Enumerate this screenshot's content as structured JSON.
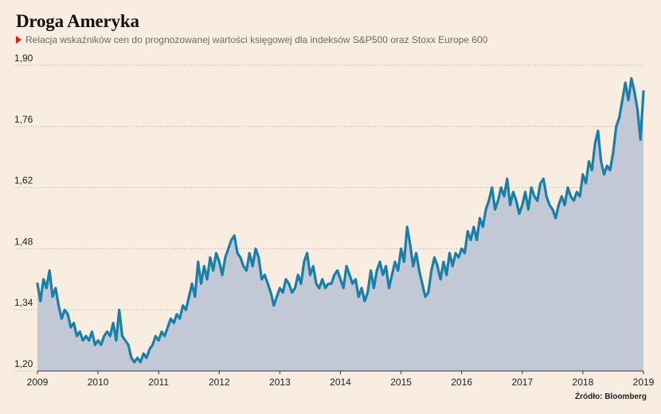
{
  "title": "Droga Ameryka",
  "subtitle": "Relacja wskaźników cen do prognozowanej wartości księgowej dla indeksów S&P500 oraz Stoxx Europe 600",
  "source": "Źródło: Bloomberg",
  "colors": {
    "background": "#f8ede0",
    "line": "#1a7fa8",
    "area": "#c3c8d6",
    "marker": "#e02020",
    "grid": "#9a9a9a"
  },
  "chart_data": {
    "type": "area",
    "ylim": [
      1.2,
      1.9
    ],
    "yticks": [
      "1,90",
      "1,76",
      "1,62",
      "1,48",
      "1,34",
      "1,20"
    ],
    "ytick_values": [
      1.9,
      1.76,
      1.62,
      1.48,
      1.34,
      1.2
    ],
    "xlim": [
      2009.0,
      2019.0
    ],
    "xticks": [
      "2009",
      "2010",
      "2011",
      "2012",
      "2013",
      "2014",
      "2015",
      "2016",
      "2017",
      "2018",
      "2019"
    ],
    "xtick_values": [
      2009,
      2010,
      2011,
      2012,
      2013,
      2014,
      2015,
      2016,
      2017,
      2018,
      2019
    ],
    "grid": "horizontal dotted",
    "x": [
      2009.0,
      2009.05,
      2009.1,
      2009.15,
      2009.2,
      2009.25,
      2009.3,
      2009.35,
      2009.4,
      2009.45,
      2009.5,
      2009.55,
      2009.6,
      2009.65,
      2009.7,
      2009.75,
      2009.8,
      2009.85,
      2009.9,
      2009.95,
      2010.0,
      2010.05,
      2010.1,
      2010.15,
      2010.2,
      2010.25,
      2010.3,
      2010.35,
      2010.4,
      2010.45,
      2010.5,
      2010.55,
      2010.6,
      2010.65,
      2010.7,
      2010.75,
      2010.8,
      2010.85,
      2010.9,
      2010.95,
      2011.0,
      2011.05,
      2011.1,
      2011.15,
      2011.2,
      2011.25,
      2011.3,
      2011.35,
      2011.4,
      2011.45,
      2011.5,
      2011.55,
      2011.6,
      2011.65,
      2011.7,
      2011.75,
      2011.8,
      2011.85,
      2011.9,
      2011.95,
      2012.0,
      2012.05,
      2012.1,
      2012.15,
      2012.2,
      2012.25,
      2012.3,
      2012.35,
      2012.4,
      2012.45,
      2012.5,
      2012.55,
      2012.6,
      2012.65,
      2012.7,
      2012.75,
      2012.8,
      2012.85,
      2012.9,
      2012.95,
      2013.0,
      2013.05,
      2013.1,
      2013.15,
      2013.2,
      2013.25,
      2013.3,
      2013.35,
      2013.4,
      2013.45,
      2013.5,
      2013.55,
      2013.6,
      2013.65,
      2013.7,
      2013.75,
      2013.8,
      2013.85,
      2013.9,
      2013.95,
      2014.0,
      2014.05,
      2014.1,
      2014.15,
      2014.2,
      2014.25,
      2014.3,
      2014.35,
      2014.4,
      2014.45,
      2014.5,
      2014.55,
      2014.6,
      2014.65,
      2014.7,
      2014.75,
      2014.8,
      2014.85,
      2014.9,
      2014.95,
      2015.0,
      2015.05,
      2015.1,
      2015.15,
      2015.2,
      2015.25,
      2015.3,
      2015.35,
      2015.4,
      2015.45,
      2015.5,
      2015.55,
      2015.6,
      2015.65,
      2015.7,
      2015.75,
      2015.8,
      2015.85,
      2015.9,
      2015.95,
      2016.0,
      2016.05,
      2016.1,
      2016.15,
      2016.2,
      2016.25,
      2016.3,
      2016.35,
      2016.4,
      2016.45,
      2016.5,
      2016.55,
      2016.6,
      2016.65,
      2016.7,
      2016.75,
      2016.8,
      2016.85,
      2016.9,
      2016.95,
      2017.0,
      2017.05,
      2017.1,
      2017.15,
      2017.2,
      2017.25,
      2017.3,
      2017.35,
      2017.4,
      2017.45,
      2017.5,
      2017.55,
      2017.6,
      2017.65,
      2017.7,
      2017.75,
      2017.8,
      2017.85,
      2017.9,
      2017.95,
      2018.0,
      2018.05,
      2018.1,
      2018.15,
      2018.2,
      2018.25,
      2018.3,
      2018.35,
      2018.4,
      2018.45,
      2018.5,
      2018.55,
      2018.6,
      2018.65,
      2018.7,
      2018.75,
      2018.8,
      2018.85,
      2018.9,
      2018.95,
      2019.0
    ],
    "values": [
      1.4,
      1.36,
      1.41,
      1.39,
      1.43,
      1.37,
      1.39,
      1.35,
      1.32,
      1.34,
      1.33,
      1.3,
      1.31,
      1.28,
      1.29,
      1.27,
      1.28,
      1.27,
      1.29,
      1.26,
      1.27,
      1.26,
      1.28,
      1.29,
      1.28,
      1.31,
      1.27,
      1.34,
      1.28,
      1.27,
      1.26,
      1.23,
      1.22,
      1.23,
      1.22,
      1.24,
      1.23,
      1.25,
      1.26,
      1.28,
      1.27,
      1.29,
      1.28,
      1.3,
      1.32,
      1.31,
      1.33,
      1.32,
      1.35,
      1.34,
      1.37,
      1.4,
      1.37,
      1.45,
      1.4,
      1.44,
      1.41,
      1.46,
      1.43,
      1.47,
      1.45,
      1.42,
      1.46,
      1.48,
      1.5,
      1.51,
      1.47,
      1.46,
      1.44,
      1.43,
      1.47,
      1.44,
      1.48,
      1.46,
      1.41,
      1.42,
      1.4,
      1.38,
      1.35,
      1.37,
      1.39,
      1.38,
      1.41,
      1.4,
      1.38,
      1.39,
      1.42,
      1.4,
      1.45,
      1.47,
      1.42,
      1.44,
      1.4,
      1.39,
      1.41,
      1.39,
      1.4,
      1.4,
      1.42,
      1.43,
      1.41,
      1.39,
      1.44,
      1.42,
      1.4,
      1.41,
      1.37,
      1.39,
      1.36,
      1.38,
      1.43,
      1.39,
      1.43,
      1.45,
      1.42,
      1.44,
      1.39,
      1.42,
      1.45,
      1.43,
      1.48,
      1.45,
      1.53,
      1.49,
      1.44,
      1.47,
      1.43,
      1.4,
      1.37,
      1.38,
      1.43,
      1.46,
      1.44,
      1.41,
      1.45,
      1.42,
      1.47,
      1.44,
      1.47,
      1.46,
      1.48,
      1.47,
      1.52,
      1.5,
      1.53,
      1.5,
      1.55,
      1.53,
      1.57,
      1.59,
      1.62,
      1.57,
      1.59,
      1.62,
      1.6,
      1.64,
      1.58,
      1.61,
      1.59,
      1.56,
      1.58,
      1.61,
      1.57,
      1.62,
      1.6,
      1.59,
      1.63,
      1.64,
      1.6,
      1.58,
      1.57,
      1.55,
      1.58,
      1.6,
      1.58,
      1.62,
      1.6,
      1.59,
      1.61,
      1.6,
      1.65,
      1.63,
      1.68,
      1.66,
      1.72,
      1.75,
      1.68,
      1.65,
      1.67,
      1.66,
      1.7,
      1.76,
      1.78,
      1.82,
      1.86,
      1.82,
      1.87,
      1.84,
      1.8,
      1.73,
      1.84
    ],
    "end_value": 1.84
  }
}
